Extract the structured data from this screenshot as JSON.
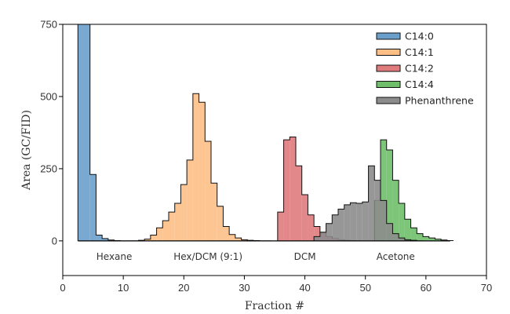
{
  "chart_data": {
    "type": "histogram",
    "xlabel": "Fraction #",
    "ylabel": "Area (GC/FID)",
    "xlim": [
      0,
      70
    ],
    "ylim": [
      -120,
      750
    ],
    "xticks": [
      0,
      10,
      20,
      30,
      40,
      50,
      60,
      70
    ],
    "yticks": [
      0,
      250,
      500,
      750
    ],
    "grid": false,
    "legend_position": "top-right",
    "baseline": {
      "value": 0,
      "x_range": [
        2.5,
        64
      ]
    },
    "annotations": [
      {
        "text": "Hexane",
        "x": 8.5
      },
      {
        "text": "Hex/DCM (9:1)",
        "x": 24
      },
      {
        "text": "DCM",
        "x": 40
      },
      {
        "text": "Acetone",
        "x": 55
      }
    ],
    "series": [
      {
        "name": "C14:0",
        "color": "#6a9fcb",
        "x": [
          2.5,
          3.5,
          4.5,
          5.5,
          6.5,
          7.5,
          8.5,
          9.5,
          10.5,
          11.5,
          12.5,
          13.5,
          14.5
        ],
        "values": [
          750,
          750,
          230,
          20,
          8,
          3,
          1,
          0,
          0,
          0,
          0,
          0,
          0
        ],
        "bin_width": 1
      },
      {
        "name": "C14:1",
        "color": "#fdbf86",
        "x": [
          12.5,
          13.5,
          14.5,
          15.5,
          16.5,
          17.5,
          18.5,
          19.5,
          20.5,
          21.5,
          22.5,
          23.5,
          24.5,
          25.5,
          26.5,
          27.5,
          28.5,
          29.5,
          30.5,
          31.5,
          32.5,
          33.5
        ],
        "values": [
          2,
          6,
          20,
          45,
          70,
          100,
          130,
          195,
          280,
          510,
          480,
          345,
          200,
          120,
          50,
          22,
          10,
          4,
          2,
          1,
          0,
          0
        ],
        "bin_width": 1
      },
      {
        "name": "C14:2",
        "color": "#e07b7d",
        "x": [
          35.5,
          36.5,
          37.5,
          38.5,
          39.5,
          40.5,
          41.5,
          42.5,
          43.5,
          44.5,
          45.5,
          46.5,
          47.5,
          48.5
        ],
        "values": [
          100,
          350,
          360,
          260,
          160,
          90,
          50,
          30,
          15,
          8,
          4,
          2,
          1,
          0
        ],
        "bin_width": 1
      },
      {
        "name": "C14:4",
        "color": "#6fbf6a",
        "x": [
          51.5,
          52.5,
          53.5,
          54.5,
          55.5,
          56.5,
          57.5,
          58.5,
          59.5,
          60.5,
          61.5,
          62.5,
          63.5
        ],
        "values": [
          140,
          350,
          315,
          210,
          130,
          75,
          45,
          25,
          15,
          10,
          6,
          3,
          1
        ],
        "bin_width": 1
      },
      {
        "name": "Phenanthrene",
        "color": "#8c8c8c",
        "x": [
          41.5,
          42.5,
          43.5,
          44.5,
          45.5,
          46.5,
          47.5,
          48.5,
          49.5,
          50.5,
          51.5,
          52.5,
          53.5,
          54.5,
          55.5,
          56.5,
          57.5,
          58.5
        ],
        "values": [
          15,
          30,
          60,
          90,
          110,
          125,
          132,
          130,
          135,
          260,
          210,
          140,
          60,
          25,
          10,
          4,
          2,
          0
        ],
        "bin_width": 1
      }
    ]
  }
}
